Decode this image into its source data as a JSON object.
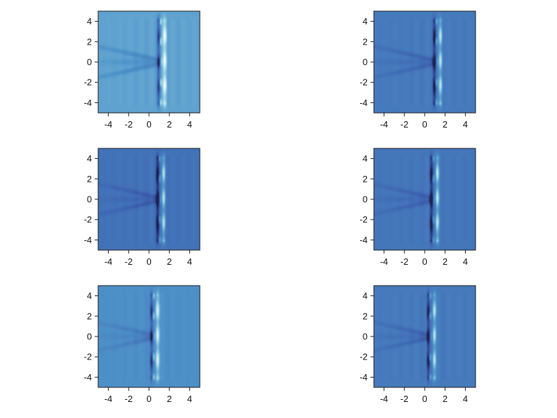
{
  "chart_data": [
    {
      "type": "heatmap",
      "panel": "row1-left",
      "xlim": [
        -5,
        5
      ],
      "ylim": [
        -5,
        5
      ],
      "xticks": [
        -4,
        -2,
        0,
        2,
        4
      ],
      "yticks": [
        4,
        2,
        0,
        -2,
        -4
      ],
      "xtick_labels": [
        "-4",
        "-2",
        "0",
        "2",
        "4"
      ],
      "ytick_labels": [
        "4",
        "2",
        "0",
        "-2",
        "-4"
      ],
      "colormap": [
        "#1e2452",
        "#3c5fae",
        "#4e93c9",
        "#a9dde8",
        "#ffffff"
      ],
      "background_level": 0.55,
      "front_x": 1.2,
      "grid": false,
      "legend": "none",
      "colorbar": false
    },
    {
      "type": "heatmap",
      "panel": "row1-right",
      "xlim": [
        -5,
        5
      ],
      "ylim": [
        -5,
        5
      ],
      "xticks": [
        -4,
        -2,
        0,
        2,
        4
      ],
      "yticks": [
        4,
        2,
        0,
        -2,
        -4
      ],
      "xtick_labels": [
        "-4",
        "-2",
        "0",
        "2",
        "4"
      ],
      "ytick_labels": [
        "4",
        "2",
        "0",
        "-2",
        "-4"
      ],
      "colormap": [
        "#1e2452",
        "#3c5fae",
        "#4e93c9",
        "#a9dde8",
        "#ffffff"
      ],
      "background_level": 0.38,
      "front_x": 1.2,
      "grid": false,
      "legend": "none",
      "colorbar": false
    },
    {
      "type": "heatmap",
      "panel": "row2-left",
      "xlim": [
        -5,
        5
      ],
      "ylim": [
        -5,
        5
      ],
      "xticks": [
        -4,
        -2,
        0,
        2,
        4
      ],
      "yticks": [
        4,
        2,
        0,
        -2,
        -4
      ],
      "xtick_labels": [
        "-4",
        "-2",
        "0",
        "2",
        "4"
      ],
      "ytick_labels": [
        "4",
        "2",
        "0",
        "-2",
        "-4"
      ],
      "colormap": [
        "#1e2452",
        "#3c5fae",
        "#4e93c9",
        "#a9dde8",
        "#ffffff"
      ],
      "background_level": 0.34,
      "front_x": 1.1,
      "grid": false,
      "legend": "none",
      "colorbar": false
    },
    {
      "type": "heatmap",
      "panel": "row2-right",
      "xlim": [
        -5,
        5
      ],
      "ylim": [
        -5,
        5
      ],
      "xticks": [
        -4,
        -2,
        0,
        2,
        4
      ],
      "yticks": [
        4,
        2,
        0,
        -2,
        -4
      ],
      "xtick_labels": [
        "-4",
        "-2",
        "0",
        "2",
        "4"
      ],
      "ytick_labels": [
        "4",
        "2",
        "0",
        "-2",
        "-4"
      ],
      "colormap": [
        "#1e2452",
        "#3c5fae",
        "#4e93c9",
        "#a9dde8",
        "#ffffff"
      ],
      "background_level": 0.36,
      "front_x": 0.9,
      "grid": false,
      "legend": "none",
      "colorbar": false
    },
    {
      "type": "heatmap",
      "panel": "row3-left",
      "xlim": [
        -5,
        5
      ],
      "ylim": [
        -5,
        5
      ],
      "xticks": [
        -4,
        -2,
        0,
        2,
        4
      ],
      "yticks": [
        4,
        2,
        0,
        -2,
        -4
      ],
      "xtick_labels": [
        "-4",
        "-2",
        "0",
        "2",
        "4"
      ],
      "ytick_labels": [
        "4",
        "2",
        "0",
        "-2",
        "-4"
      ],
      "colormap": [
        "#1e2452",
        "#3c5fae",
        "#4e93c9",
        "#a9dde8",
        "#ffffff"
      ],
      "background_level": 0.48,
      "front_x": 0.5,
      "grid": false,
      "legend": "none",
      "colorbar": false
    },
    {
      "type": "heatmap",
      "panel": "row3-right",
      "xlim": [
        -5,
        5
      ],
      "ylim": [
        -5,
        5
      ],
      "xticks": [
        -4,
        -2,
        0,
        2,
        4
      ],
      "yticks": [
        4,
        2,
        0,
        -2,
        -4
      ],
      "xtick_labels": [
        "-4",
        "-2",
        "0",
        "2",
        "4"
      ],
      "ytick_labels": [
        "4",
        "2",
        "0",
        "-2",
        "-4"
      ],
      "colormap": [
        "#1e2452",
        "#3c5fae",
        "#4e93c9",
        "#a9dde8",
        "#ffffff"
      ],
      "background_level": 0.38,
      "front_x": 0.6,
      "grid": false,
      "legend": "none",
      "colorbar": false
    }
  ]
}
